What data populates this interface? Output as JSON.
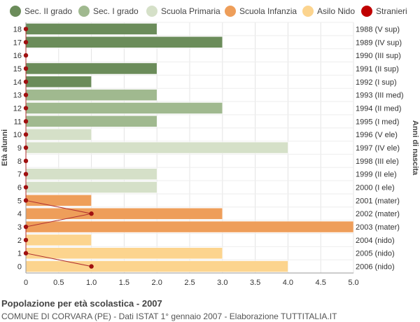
{
  "legend": [
    {
      "label": "Sec. II grado",
      "color": "#6b8c5a"
    },
    {
      "label": "Sec. I grado",
      "color": "#a0b98f"
    },
    {
      "label": "Scuola Primaria",
      "color": "#d5e0c8"
    },
    {
      "label": "Scuola Infanzia",
      "color": "#ee9e5a"
    },
    {
      "label": "Asilo Nido",
      "color": "#fcd48e"
    },
    {
      "label": "Stranieri",
      "color": "#c00000"
    }
  ],
  "chart_data": {
    "type": "bar",
    "orientation": "horizontal",
    "ylabel_left": "Età alunni",
    "ylabel_right": "Anni di nascita",
    "xlim": [
      0,
      5
    ],
    "x_ticks": [
      "0",
      "0.5",
      "1.0",
      "1.5",
      "2.0",
      "2.5",
      "3.0",
      "3.5",
      "4.0",
      "4.5",
      "5.0"
    ],
    "grid": true,
    "ages": [
      "18",
      "17",
      "16",
      "15",
      "14",
      "13",
      "12",
      "11",
      "10",
      "9",
      "8",
      "7",
      "6",
      "5",
      "4",
      "3",
      "2",
      "1",
      "0"
    ],
    "birth_years": [
      "1988 (V sup)",
      "1989 (IV sup)",
      "1990 (III sup)",
      "1991 (II sup)",
      "1992 (I sup)",
      "1993 (III med)",
      "1994 (II med)",
      "1995 (I med)",
      "1996 (V ele)",
      "1997 (IV ele)",
      "1998 (III ele)",
      "1999 (II ele)",
      "2000 (I ele)",
      "2001 (mater)",
      "2002 (mater)",
      "2003 (mater)",
      "2004 (nido)",
      "2005 (nido)",
      "2006 (nido)"
    ],
    "values": [
      2,
      3,
      0,
      2,
      1,
      2,
      3,
      2,
      1,
      4,
      0,
      2,
      2,
      1,
      3,
      5,
      1,
      3,
      4
    ],
    "bar_colors": [
      "#6b8c5a",
      "#6b8c5a",
      "#6b8c5a",
      "#6b8c5a",
      "#6b8c5a",
      "#a0b98f",
      "#a0b98f",
      "#a0b98f",
      "#d5e0c8",
      "#d5e0c8",
      "#d5e0c8",
      "#d5e0c8",
      "#d5e0c8",
      "#ee9e5a",
      "#ee9e5a",
      "#ee9e5a",
      "#fcd48e",
      "#fcd48e",
      "#fcd48e"
    ],
    "stranieri": [
      0,
      0,
      0,
      0,
      0,
      0,
      0,
      0,
      0,
      0,
      0,
      0,
      0,
      0,
      1,
      0,
      0,
      0,
      1
    ],
    "stranieri_color": "#a01010"
  },
  "footer": {
    "title": "Popolazione per età scolastica - 2007",
    "subtitle": "COMUNE DI CORVARA (PE) - Dati ISTAT 1° gennaio 2007 - Elaborazione TUTTITALIA.IT"
  }
}
